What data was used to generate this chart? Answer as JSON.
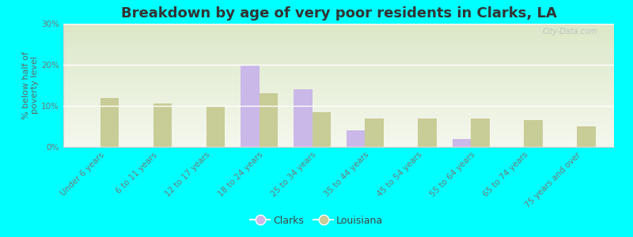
{
  "title": "Breakdown by age of very poor residents in Clarks, LA",
  "ylabel": "% below half of\npoverty level",
  "categories": [
    "Under 6 years",
    "6 to 11 years",
    "12 to 17 years",
    "18 to 24 years",
    "25 to 34 years",
    "35 to 44 years",
    "45 to 54 years",
    "55 to 64 years",
    "65 to 74 years",
    "75 years and over"
  ],
  "clarks_values": [
    0,
    0,
    0,
    20,
    14,
    4,
    0,
    2,
    0,
    0
  ],
  "louisiana_values": [
    12,
    10.5,
    10,
    13,
    8.5,
    7,
    7,
    7,
    6.5,
    5
  ],
  "clarks_color": "#c9b8e8",
  "louisiana_color": "#c8cc96",
  "background_color": "#00ffff",
  "plot_bg_color": "#e8edda",
  "ylim": [
    0,
    30
  ],
  "yticks": [
    0,
    10,
    20,
    30
  ],
  "ytick_labels": [
    "0%",
    "10%",
    "20%",
    "30%"
  ],
  "bar_width": 0.35,
  "title_fontsize": 13,
  "axis_label_fontsize": 8,
  "tick_fontsize": 7.5,
  "legend_labels": [
    "Clarks",
    "Louisiana"
  ],
  "watermark": "City-Data.com"
}
